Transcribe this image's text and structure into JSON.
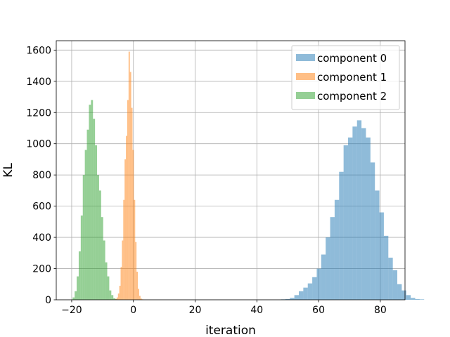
{
  "chart_data": {
    "type": "histogram",
    "xlabel": "iteration",
    "ylabel": "KL",
    "xlim": [
      -25,
      88
    ],
    "ylim": [
      0,
      1660
    ],
    "x_ticks": [
      -20,
      0,
      20,
      40,
      60,
      80
    ],
    "y_ticks": [
      0,
      200,
      400,
      600,
      800,
      1000,
      1200,
      1400,
      1600
    ],
    "grid": true,
    "legend_position": "top-right",
    "series": [
      {
        "name": "component 0",
        "color": "#1f77b4",
        "alpha": 0.5,
        "bin_start": 47.8,
        "bin_width": 1.45,
        "counts": [
          3,
          5,
          12,
          30,
          55,
          78,
          105,
          145,
          200,
          290,
          400,
          530,
          640,
          820,
          990,
          1040,
          1110,
          1150,
          1100,
          1040,
          880,
          700,
          560,
          410,
          270,
          190,
          100,
          60,
          30,
          12,
          5,
          3
        ]
      },
      {
        "name": "component 1",
        "color": "#ff7f0e",
        "alpha": 0.5,
        "bin_start": -6.3,
        "bin_width": 0.43,
        "counts": [
          2,
          6,
          15,
          40,
          90,
          210,
          380,
          640,
          900,
          1050,
          1280,
          1590,
          1460,
          1230,
          960,
          640,
          370,
          180,
          70,
          25,
          8,
          3
        ]
      },
      {
        "name": "component 2",
        "color": "#2ca02c",
        "alpha": 0.5,
        "bin_start": -19.7,
        "bin_width": 0.66,
        "counts": [
          15,
          55,
          150,
          310,
          540,
          800,
          960,
          1090,
          1250,
          1280,
          1160,
          990,
          800,
          700,
          530,
          380,
          240,
          150,
          60,
          30,
          10,
          3
        ]
      }
    ]
  }
}
